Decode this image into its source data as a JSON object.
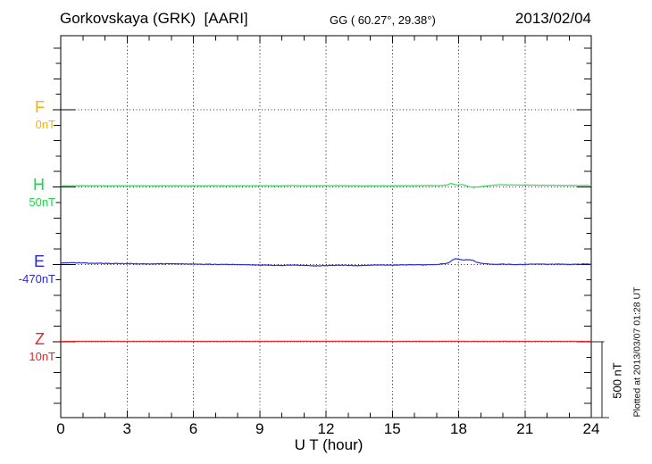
{
  "header": {
    "station_title": "Gorkovskaya (GRK)  [AARI]",
    "coords": "GG ( 60.27°, 29.38°)",
    "date": "2013/02/04"
  },
  "footer_note": "Plotted at 2013/03/07 01:28 UT",
  "chart_data": {
    "type": "line",
    "title": "Gorkovskaya (GRK)  [AARI] magnetogram",
    "xlabel": "U T (hour)",
    "ylabel": "",
    "xlim": [
      0,
      24
    ],
    "x_major_ticks": [
      0,
      3,
      6,
      9,
      12,
      15,
      18,
      21,
      24
    ],
    "x_minor_step_hours": 1,
    "grid": "dotted vertical lines every 3 hours; dotted horizontal line at each channel baseline",
    "y_minor_division_nT": 100,
    "baseline_spacing_nT": 500,
    "scale_bar": {
      "label": "500 nT",
      "span_nT": 500
    },
    "series": [
      {
        "name": "F",
        "color": "#FFAE00",
        "baseline_label": "0nT",
        "baseline_nT": 0,
        "no_data": true,
        "noise_nT": 0,
        "points": []
      },
      {
        "name": "H",
        "color": "#2BD94F",
        "baseline_label": "50nT",
        "baseline_nT": 50,
        "no_data": false,
        "noise_nT": 1.5,
        "points": [
          [
            0,
            59
          ],
          [
            1,
            59.5
          ],
          [
            2,
            58.8
          ],
          [
            3,
            59.2
          ],
          [
            4,
            58.8
          ],
          [
            5,
            59.5
          ],
          [
            6,
            59
          ],
          [
            7,
            59.3
          ],
          [
            8,
            58.8
          ],
          [
            9,
            59.6
          ],
          [
            10,
            59
          ],
          [
            10.5,
            60.8
          ],
          [
            11,
            59.3
          ],
          [
            12,
            59
          ],
          [
            12.5,
            60.8
          ],
          [
            13,
            59.5
          ],
          [
            14,
            59
          ],
          [
            15,
            59
          ],
          [
            16,
            60
          ],
          [
            16.6,
            61
          ],
          [
            17,
            60.5
          ],
          [
            17.3,
            61.5
          ],
          [
            17.5,
            64
          ],
          [
            17.65,
            74
          ],
          [
            17.8,
            67
          ],
          [
            17.95,
            63
          ],
          [
            18.15,
            67
          ],
          [
            18.3,
            62
          ],
          [
            18.5,
            52
          ],
          [
            18.7,
            49
          ],
          [
            18.9,
            51
          ],
          [
            19.2,
            57
          ],
          [
            19.6,
            63
          ],
          [
            20,
            65
          ],
          [
            20.5,
            64
          ],
          [
            21,
            64
          ],
          [
            21.5,
            62.5
          ],
          [
            22,
            62
          ],
          [
            22.5,
            61.5
          ],
          [
            23,
            61
          ],
          [
            23.5,
            61
          ],
          [
            24,
            61
          ]
        ]
      },
      {
        "name": "E",
        "color": "#2A2AD4",
        "baseline_label": "-470nT",
        "baseline_nT": -470,
        "no_data": false,
        "noise_nT": 2.8,
        "points": [
          [
            0,
            -461
          ],
          [
            0.4,
            -459
          ],
          [
            0.8,
            -460
          ],
          [
            1.2,
            -462
          ],
          [
            1.8,
            -463
          ],
          [
            2.5,
            -464.5
          ],
          [
            3,
            -465
          ],
          [
            3.5,
            -466
          ],
          [
            4,
            -467
          ],
          [
            4.5,
            -466
          ],
          [
            5,
            -465.5
          ],
          [
            5.5,
            -467
          ],
          [
            6,
            -468
          ],
          [
            6.5,
            -468.5
          ],
          [
            7,
            -470
          ],
          [
            7.5,
            -470.5
          ],
          [
            8,
            -471.5
          ],
          [
            8.5,
            -472.5
          ],
          [
            9,
            -474
          ],
          [
            9.5,
            -475.5
          ],
          [
            10,
            -477
          ],
          [
            10.5,
            -475
          ],
          [
            11,
            -477
          ],
          [
            11.5,
            -480
          ],
          [
            12,
            -477.5
          ],
          [
            12.5,
            -475.5
          ],
          [
            13,
            -476.5
          ],
          [
            13.5,
            -478.5
          ],
          [
            14,
            -476
          ],
          [
            14.5,
            -473.5
          ],
          [
            15,
            -474.5
          ],
          [
            15.5,
            -473
          ],
          [
            16,
            -472
          ],
          [
            16.5,
            -473
          ],
          [
            17,
            -471
          ],
          [
            17.3,
            -467
          ],
          [
            17.55,
            -459
          ],
          [
            17.7,
            -444
          ],
          [
            17.85,
            -432
          ],
          [
            18,
            -436
          ],
          [
            18.2,
            -441
          ],
          [
            18.45,
            -439.5
          ],
          [
            18.65,
            -443
          ],
          [
            18.8,
            -455
          ],
          [
            19,
            -462
          ],
          [
            19.3,
            -467
          ],
          [
            19.6,
            -470
          ],
          [
            20,
            -468.5
          ],
          [
            20.5,
            -471
          ],
          [
            21,
            -470
          ],
          [
            21.5,
            -468
          ],
          [
            22,
            -470
          ],
          [
            22.5,
            -469
          ],
          [
            23,
            -470.5
          ],
          [
            23.5,
            -468.5
          ],
          [
            24,
            -467.5
          ]
        ]
      },
      {
        "name": "Z",
        "color": "#E42525",
        "baseline_label": "10nT",
        "baseline_nT": 10,
        "no_data": false,
        "noise_nT": 1.4,
        "points": [
          [
            0,
            12.5
          ],
          [
            1,
            12.8
          ],
          [
            2,
            13
          ],
          [
            3,
            12.5
          ],
          [
            4,
            12.6
          ],
          [
            5,
            13
          ],
          [
            6,
            12.5
          ],
          [
            7,
            12.6
          ],
          [
            8,
            13
          ],
          [
            9,
            12.6
          ],
          [
            10,
            13
          ],
          [
            11,
            13.3
          ],
          [
            12,
            13.2
          ],
          [
            12.5,
            13.6
          ],
          [
            13,
            13.2
          ],
          [
            14,
            12.8
          ],
          [
            15,
            12.5
          ],
          [
            16,
            12.8
          ],
          [
            17,
            12.5
          ],
          [
            17.6,
            13.8
          ],
          [
            18,
            13
          ],
          [
            18.5,
            12.3
          ],
          [
            19,
            12.5
          ],
          [
            20,
            12.8
          ],
          [
            21,
            12.4
          ],
          [
            22,
            12.7
          ],
          [
            23,
            12.4
          ],
          [
            24,
            12.6
          ]
        ]
      }
    ]
  }
}
